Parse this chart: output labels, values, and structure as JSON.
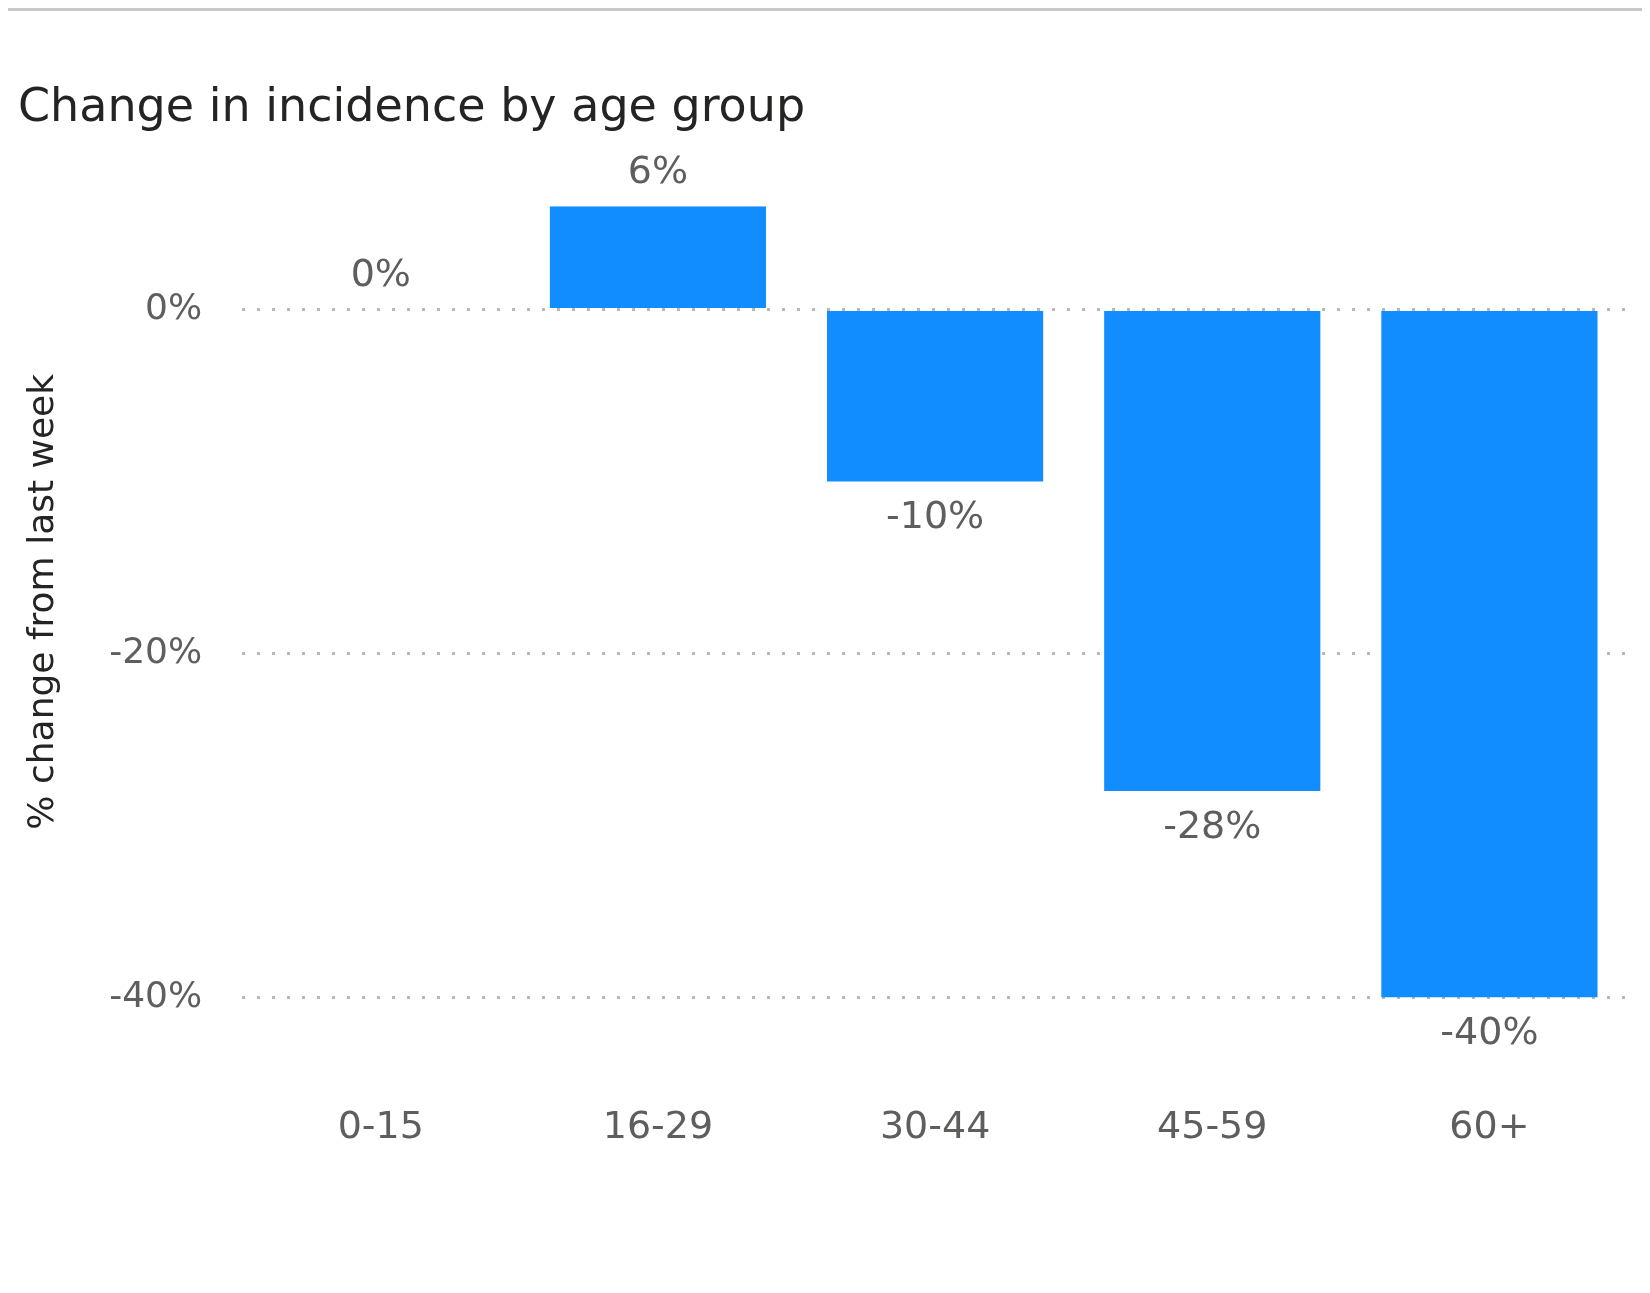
{
  "chart_data": {
    "type": "bar",
    "title": "Change in incidence by age group",
    "ylabel": "% change from last week",
    "categories": [
      "0-15",
      "16-29",
      "30-44",
      "45-59",
      "60+"
    ],
    "values": [
      0,
      6,
      -10,
      -28,
      -40
    ],
    "value_labels": [
      "0%",
      "6%",
      "-10%",
      "-28%",
      "-40%"
    ],
    "color": "#118dff",
    "ylim": [
      -40,
      6
    ],
    "yticks": [
      {
        "value": -40,
        "label": "-40%"
      },
      {
        "value": -20,
        "label": "-20%"
      },
      {
        "value": 0,
        "label": "0%"
      }
    ],
    "grid": "y",
    "line_style": "dotted",
    "legend": false
  }
}
